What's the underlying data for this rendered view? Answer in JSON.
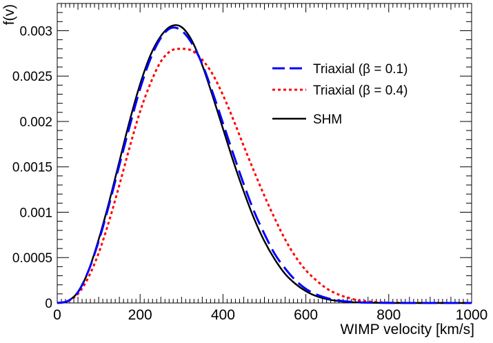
{
  "chart_data": {
    "type": "line",
    "title": "",
    "xlabel": "WIMP velocity [km/s]",
    "ylabel": "f(v)",
    "xlim": [
      0,
      1000
    ],
    "ylim": [
      0,
      0.0033
    ],
    "grid": false,
    "legend_position": "top-right",
    "x_ticks": [
      {
        "value": 0,
        "label": "0"
      },
      {
        "value": 200,
        "label": "200"
      },
      {
        "value": 400,
        "label": "400"
      },
      {
        "value": 600,
        "label": "600"
      },
      {
        "value": 800,
        "label": "800"
      },
      {
        "value": 1000,
        "label": "1000"
      }
    ],
    "y_ticks": [
      {
        "value": 0,
        "label": "0"
      },
      {
        "value": 0.0005,
        "label": "0.0005"
      },
      {
        "value": 0.001,
        "label": "0.001"
      },
      {
        "value": 0.0015,
        "label": "0.0015"
      },
      {
        "value": 0.002,
        "label": "0.002"
      },
      {
        "value": 0.0025,
        "label": "0.0025"
      },
      {
        "value": 0.003,
        "label": "0.003"
      }
    ],
    "x": [
      0,
      25,
      50,
      75,
      100,
      125,
      150,
      175,
      200,
      225,
      250,
      275,
      300,
      325,
      350,
      375,
      400,
      425,
      450,
      475,
      500,
      525,
      550,
      575,
      600,
      625,
      650,
      675,
      700,
      725,
      750,
      775,
      800,
      825,
      850,
      875,
      900,
      925,
      950,
      975,
      1000
    ],
    "series": [
      {
        "name": "Triaxial (β = 0.1)",
        "color": "#0000ff",
        "style": "dashed",
        "values": [
          0,
          2e-05,
          0.00012,
          0.00035,
          0.00068,
          0.00108,
          0.00152,
          0.00195,
          0.00236,
          0.00269,
          0.00292,
          0.00303,
          0.003,
          0.00286,
          0.00263,
          0.00232,
          0.00198,
          0.00164,
          0.00131,
          0.00101,
          0.00076,
          0.00054,
          0.00038,
          0.00025,
          0.000155,
          9.5e-05,
          5.5e-05,
          3e-05,
          1.6e-05,
          8e-06,
          4e-06,
          2e-06,
          1e-06,
          0,
          0,
          0,
          0,
          0,
          0,
          0,
          0
        ]
      },
      {
        "name": "Triaxial (β = 0.4)",
        "color": "#ff0000",
        "style": "dotted",
        "values": [
          0,
          2e-05,
          0.0001,
          0.00028,
          0.00055,
          0.0009,
          0.0013,
          0.00172,
          0.00211,
          0.00242,
          0.00266,
          0.00278,
          0.0028,
          0.00278,
          0.00268,
          0.00252,
          0.00229,
          0.00202,
          0.00173,
          0.00145,
          0.00118,
          0.00093,
          0.0007,
          0.00051,
          0.00036,
          0.00025,
          0.00016,
          0.0001,
          6e-05,
          3e-05,
          1.6e-05,
          8e-06,
          4e-06,
          2e-06,
          1e-06,
          0,
          0,
          0,
          0,
          0,
          0
        ]
      },
      {
        "name": "SHM",
        "color": "#000000",
        "style": "solid",
        "values": [
          0,
          2e-05,
          0.00012,
          0.00035,
          0.0007,
          0.00111,
          0.00156,
          0.00201,
          0.00241,
          0.00273,
          0.00294,
          0.00305,
          0.00304,
          0.00289,
          0.00262,
          0.00228,
          0.00192,
          0.00156,
          0.00123,
          0.00093,
          0.00068,
          0.00048,
          0.00032,
          0.00021,
          0.00013,
          7.6e-05,
          4.3e-05,
          2.3e-05,
          1.2e-05,
          6e-06,
          3e-06,
          1.5e-06,
          0,
          0,
          0,
          0,
          0,
          0,
          0,
          0,
          0
        ]
      }
    ]
  }
}
